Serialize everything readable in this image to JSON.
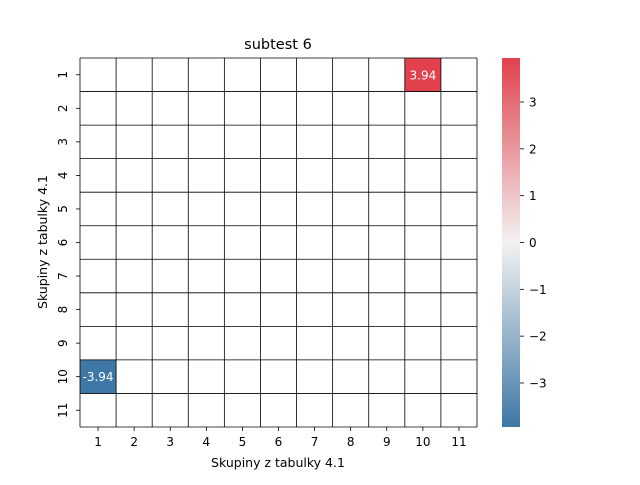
{
  "chart_data": {
    "type": "heatmap",
    "title": "subtest 6",
    "xlabel": "Skupiny z tabulky 4.1",
    "ylabel": "Skupiny z tabulky 4.1",
    "x_categories": [
      "1",
      "2",
      "3",
      "4",
      "5",
      "6",
      "7",
      "8",
      "9",
      "10",
      "11"
    ],
    "y_categories": [
      "1",
      "2",
      "3",
      "4",
      "5",
      "6",
      "7",
      "8",
      "9",
      "10",
      "11"
    ],
    "cells": [
      {
        "row": "1",
        "col": "10",
        "value": 3.94,
        "label": "3.94"
      },
      {
        "row": "10",
        "col": "1",
        "value": -3.94,
        "label": "-3.94"
      }
    ],
    "colorbar": {
      "range": [
        -3.94,
        3.94
      ],
      "ticks": [
        3,
        2,
        1,
        0,
        -1,
        -2,
        -3
      ],
      "tick_labels": [
        "3",
        "2",
        "1",
        "0",
        "−1",
        "−2",
        "−3"
      ],
      "colors": {
        "low": "#3f78a6",
        "mid": "#f2f2f2",
        "high": "#e0414d"
      }
    },
    "grid": true
  }
}
